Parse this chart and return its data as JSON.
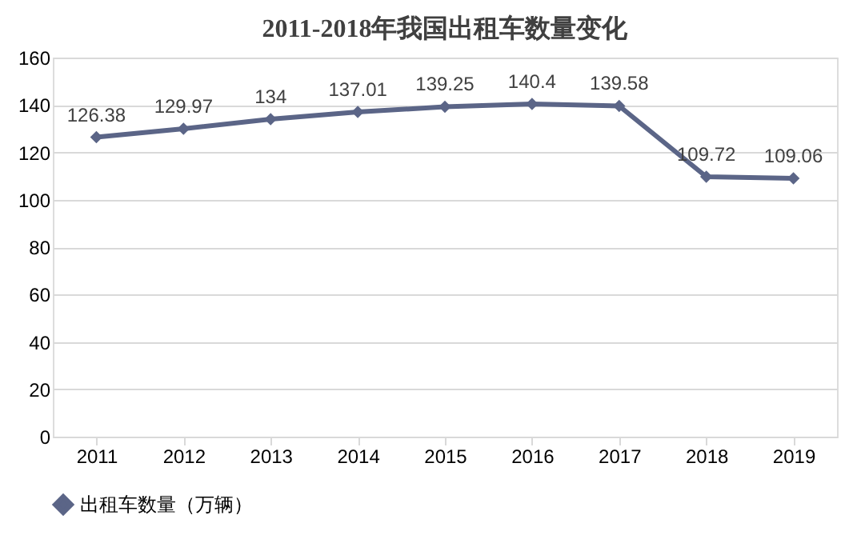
{
  "chart_data": {
    "type": "line",
    "title": "2011-2018年我国出租车数量变化",
    "categories": [
      "2011",
      "2012",
      "2013",
      "2014",
      "2015",
      "2016",
      "2017",
      "2018",
      "2019"
    ],
    "series": [
      {
        "name": "出租车数量（万辆）",
        "color": "#5b6587",
        "values": [
          126.38,
          129.97,
          134,
          137.01,
          139.25,
          140.4,
          139.58,
          109.72,
          109.06
        ]
      }
    ],
    "ylim": [
      0,
      160
    ],
    "yticks": [
      0,
      20,
      40,
      60,
      80,
      100,
      120,
      140,
      160
    ],
    "grid": "y",
    "legend": "bottom",
    "marker": "diamond",
    "line_style": "solid",
    "data_labels": true
  }
}
